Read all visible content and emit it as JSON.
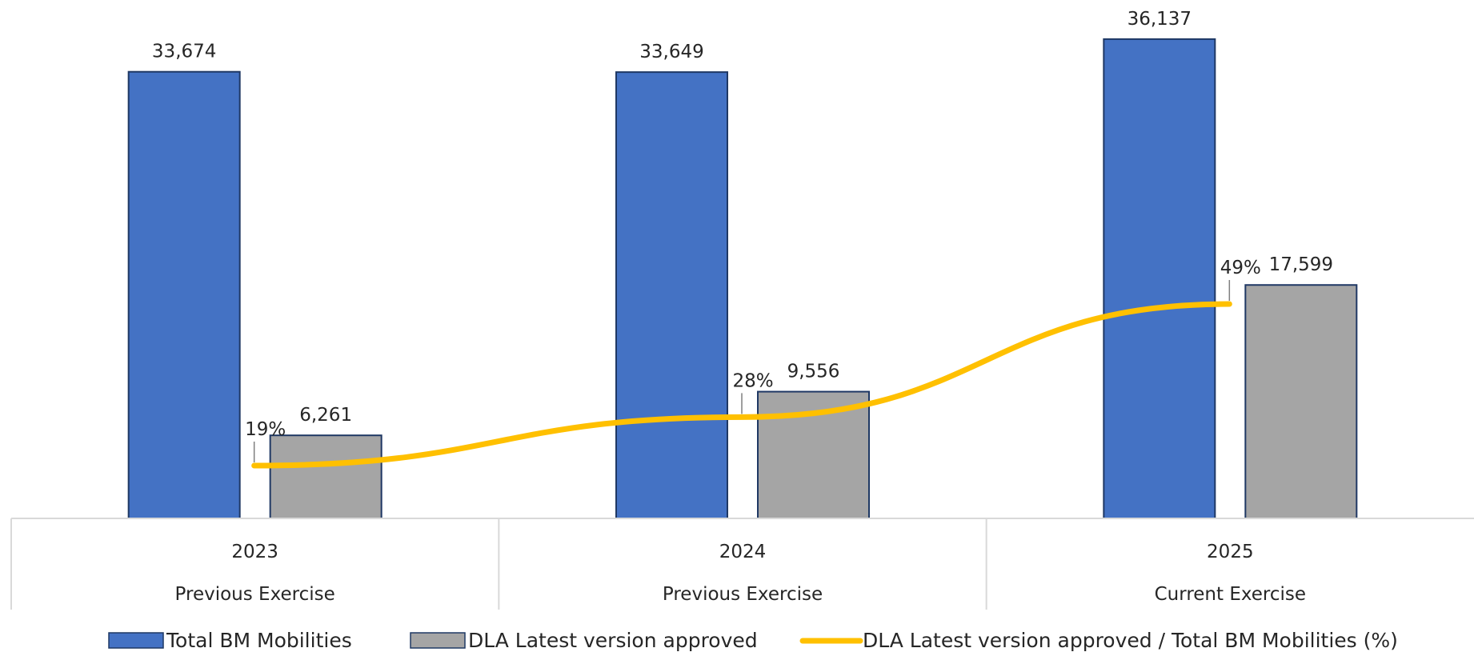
{
  "chart_data": {
    "type": "bar",
    "categories": [
      "2023",
      "2024",
      "2025"
    ],
    "category_sublabels": [
      "Previous Exercise",
      "Previous Exercise",
      "Current Exercise"
    ],
    "series": [
      {
        "name": "Total BM Mobilities",
        "type": "bar",
        "color": "#4472C4",
        "values": [
          33674,
          33649,
          36137
        ],
        "labels": [
          "33,674",
          "33,649",
          "36,137"
        ]
      },
      {
        "name": "DLA Latest version approved",
        "type": "bar",
        "color": "#A5A5A5",
        "values": [
          6261,
          9556,
          17599
        ],
        "labels": [
          "6,261",
          "9,556",
          "17,599"
        ]
      },
      {
        "name": "DLA Latest version approved / Total BM Mobilities (%)",
        "type": "line",
        "color": "#FFC000",
        "values": [
          19,
          28,
          49
        ],
        "labels": [
          "19%",
          "28%",
          "49%"
        ]
      }
    ],
    "ylim": [
      0,
      38000
    ],
    "title": "",
    "xlabel": "",
    "ylabel": "",
    "grid": false,
    "legend_position": "bottom"
  }
}
